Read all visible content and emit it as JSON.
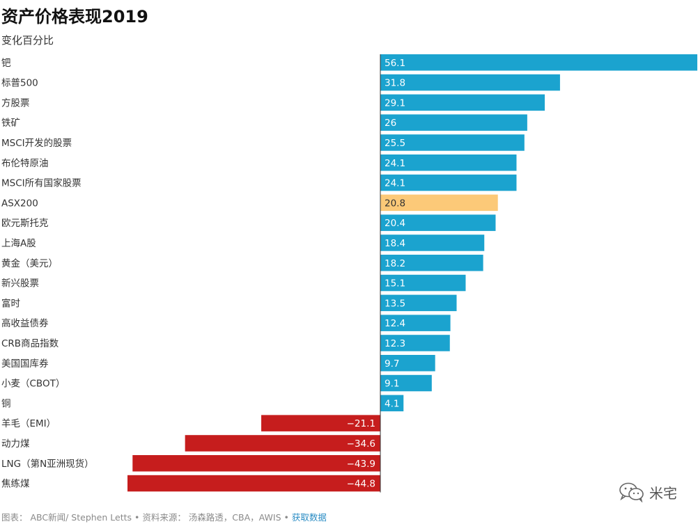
{
  "header": {
    "title": "资产价格表现2019",
    "subtitle": "变化百分比"
  },
  "footer": {
    "credit": "图表： ABC新闻/ Stephen Letts • 资料来源： 汤森路透，CBA，AWIS • ",
    "link_label": "获取数据"
  },
  "watermark": {
    "label": "米宅",
    "icon": "wechat-icon"
  },
  "colors": {
    "positive": "#1ba3cf",
    "highlight": "#fcc978",
    "negative": "#c61d1d",
    "axis": "#333333"
  },
  "chart_data": {
    "type": "bar",
    "orientation": "horizontal",
    "title": "资产价格表现2019",
    "subtitle": "变化百分比",
    "xlabel": "",
    "ylabel": "",
    "xlim": [
      -44.8,
      56.1
    ],
    "grid": false,
    "highlight_category": "ASX200",
    "categories": [
      "钯",
      "标普500",
      "方股票",
      "铁矿",
      "MSCI开发的股票",
      "布伦特原油",
      "MSCI所有国家股票",
      "ASX200",
      "欧元斯托克",
      "上海A股",
      "黄金（美元）",
      "新兴股票",
      "富时",
      "高收益债券",
      "CRB商品指数",
      "美国国库券",
      "小麦（CBOT）",
      "铜",
      "羊毛（EMI）",
      "动力煤",
      "LNG（第N亚洲现货）",
      "焦练煤"
    ],
    "values": [
      56.1,
      31.8,
      29.1,
      26,
      25.5,
      24.1,
      24.1,
      20.8,
      20.4,
      18.4,
      18.2,
      15.1,
      13.5,
      12.4,
      12.3,
      9.7,
      9.1,
      4.1,
      -21.1,
      -34.6,
      -43.9,
      -44.8
    ],
    "value_labels": [
      "56.1",
      "31.8",
      "29.1",
      "26",
      "25.5",
      "24.1",
      "24.1",
      "20.8",
      "20.4",
      "18.4",
      "18.2",
      "15.1",
      "13.5",
      "12.4",
      "12.3",
      "9.7",
      "9.1",
      "4.1",
      "−21.1",
      "−34.6",
      "−43.9",
      "−44.8"
    ]
  }
}
